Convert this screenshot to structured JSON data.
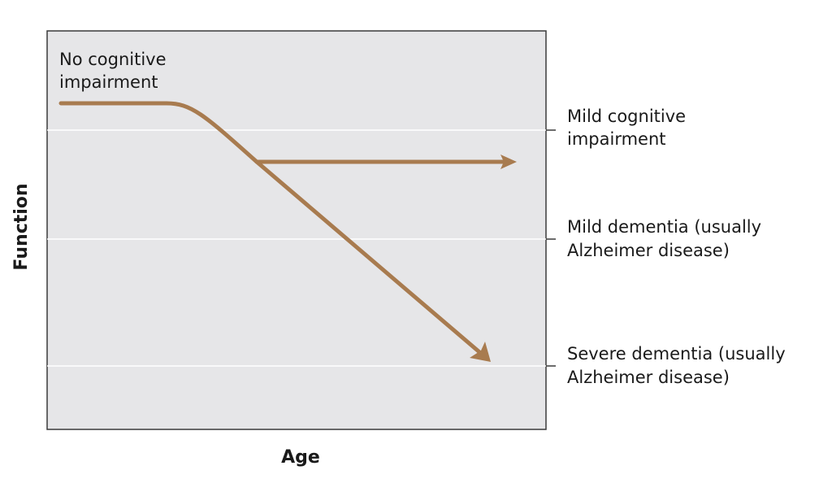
{
  "diagram": {
    "y_axis_label": "Function",
    "x_axis_label": "Age",
    "start_annotation": {
      "line1": "No cognitive",
      "line2": "impairment"
    },
    "levels": [
      {
        "line1": "Mild cognitive",
        "line2": "impairment"
      },
      {
        "line1": "Mild dementia (usually",
        "line2": "Alzheimer disease)"
      },
      {
        "line1": "Severe dementia (usually",
        "line2": "Alzheimer disease)"
      }
    ],
    "colors": {
      "plot_background": "#e6e6e8",
      "frame": "#3a3a3a",
      "gridline": "#ffffff",
      "trajectory": "#a87b4f",
      "text": "#1a1a1a"
    }
  }
}
